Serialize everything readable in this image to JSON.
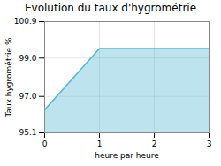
{
  "chart_data": {
    "type": "area",
    "title": "Evolution du taux d'hygrométrie",
    "xlabel": "heure par heure",
    "ylabel": "Taux hygrométrie %",
    "x": [
      0,
      1,
      3
    ],
    "values": [
      96.3,
      99.5,
      99.5
    ],
    "xlim": [
      0,
      3
    ],
    "ylim": [
      95.1,
      100.9
    ],
    "xticks": [
      0,
      1,
      2,
      3
    ],
    "yticks": [
      95.1,
      {
        "value": 97.0,
        "label": "97.0"
      },
      {
        "value": 99.0,
        "label": "99.0"
      },
      100.9
    ],
    "color": "#5bb8d4",
    "grid": true
  }
}
